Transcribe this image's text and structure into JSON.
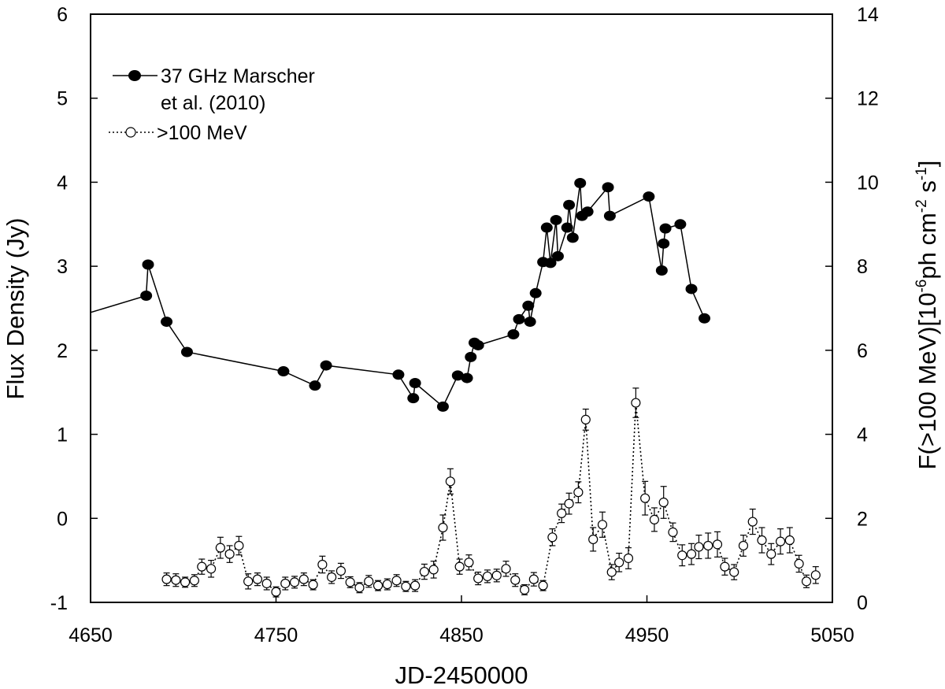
{
  "chart_data": {
    "type": "line",
    "title": "",
    "xlabel": "JD-2450000",
    "ylabel_left": "Flux Density (Jy)",
    "ylabel_right": "F(>100 MeV)[10^-6 ph cm^-2 s^-1]",
    "xlim": [
      4650,
      5050
    ],
    "ylim_left": [
      -1,
      6
    ],
    "ylim_right": [
      0,
      14
    ],
    "x_ticks": [
      "4650",
      "4750",
      "4850",
      "4950",
      "5050"
    ],
    "y_ticks_left": [
      "-1",
      "0",
      "1",
      "2",
      "3",
      "4",
      "5",
      "6"
    ],
    "y_ticks_right": [
      "0",
      "2",
      "4",
      "6",
      "8",
      "10",
      "12",
      "14"
    ],
    "legend": {
      "position": "top-left",
      "entries": [
        {
          "line1": "37 GHz Marscher",
          "line2": "et al. (2010)"
        },
        {
          "line1": ">100 MeV"
        }
      ]
    },
    "series": [
      {
        "name": "37 GHz Marscher et al. (2010)",
        "axis": "left",
        "line_start": {
          "x": 4650,
          "y": 2.45
        },
        "points": [
          {
            "x": 4680,
            "y": 2.65
          },
          {
            "x": 4681,
            "y": 3.02
          },
          {
            "x": 4691,
            "y": 2.34
          },
          {
            "x": 4702,
            "y": 1.98
          },
          {
            "x": 4754,
            "y": 1.75
          },
          {
            "x": 4771,
            "y": 1.58
          },
          {
            "x": 4777,
            "y": 1.82
          },
          {
            "x": 4816,
            "y": 1.71
          },
          {
            "x": 4824,
            "y": 1.43
          },
          {
            "x": 4825,
            "y": 1.61
          },
          {
            "x": 4840,
            "y": 1.33
          },
          {
            "x": 4848,
            "y": 1.7
          },
          {
            "x": 4853,
            "y": 1.67
          },
          {
            "x": 4855,
            "y": 1.92
          },
          {
            "x": 4857,
            "y": 2.09
          },
          {
            "x": 4859,
            "y": 2.06
          },
          {
            "x": 4878,
            "y": 2.19
          },
          {
            "x": 4881,
            "y": 2.37
          },
          {
            "x": 4886,
            "y": 2.53
          },
          {
            "x": 4887,
            "y": 2.34
          },
          {
            "x": 4890,
            "y": 2.68
          },
          {
            "x": 4894,
            "y": 3.05
          },
          {
            "x": 4896,
            "y": 3.46
          },
          {
            "x": 4898,
            "y": 3.04
          },
          {
            "x": 4901,
            "y": 3.55
          },
          {
            "x": 4902,
            "y": 3.12
          },
          {
            "x": 4907,
            "y": 3.46
          },
          {
            "x": 4908,
            "y": 3.73
          },
          {
            "x": 4910,
            "y": 3.34
          },
          {
            "x": 4914,
            "y": 3.99
          },
          {
            "x": 4915,
            "y": 3.6
          },
          {
            "x": 4918,
            "y": 3.65
          },
          {
            "x": 4929,
            "y": 3.94
          },
          {
            "x": 4930,
            "y": 3.6
          },
          {
            "x": 4951,
            "y": 3.83
          },
          {
            "x": 4958,
            "y": 2.95
          },
          {
            "x": 4959,
            "y": 3.27
          },
          {
            "x": 4960,
            "y": 3.45
          },
          {
            "x": 4968,
            "y": 3.5
          },
          {
            "x": 4974,
            "y": 2.73
          },
          {
            "x": 4981,
            "y": 2.38
          }
        ]
      },
      {
        "name": ">100 MeV",
        "axis": "right",
        "points": [
          {
            "x": 4691,
            "y": 0.55,
            "err": 0.15
          },
          {
            "x": 4696,
            "y": 0.53,
            "err": 0.15
          },
          {
            "x": 4701,
            "y": 0.48,
            "err": 0.12
          },
          {
            "x": 4706,
            "y": 0.52,
            "err": 0.14
          },
          {
            "x": 4710,
            "y": 0.85,
            "err": 0.18
          },
          {
            "x": 4715,
            "y": 0.8,
            "err": 0.2
          },
          {
            "x": 4720,
            "y": 1.3,
            "err": 0.25
          },
          {
            "x": 4725,
            "y": 1.15,
            "err": 0.2
          },
          {
            "x": 4730,
            "y": 1.35,
            "err": 0.22
          },
          {
            "x": 4735,
            "y": 0.5,
            "err": 0.18
          },
          {
            "x": 4740,
            "y": 0.55,
            "err": 0.15
          },
          {
            "x": 4745,
            "y": 0.45,
            "err": 0.15
          },
          {
            "x": 4750,
            "y": 0.25,
            "err": 0.12
          },
          {
            "x": 4755,
            "y": 0.45,
            "err": 0.15
          },
          {
            "x": 4760,
            "y": 0.48,
            "err": 0.14
          },
          {
            "x": 4765,
            "y": 0.55,
            "err": 0.15
          },
          {
            "x": 4770,
            "y": 0.42,
            "err": 0.12
          },
          {
            "x": 4775,
            "y": 0.9,
            "err": 0.2
          },
          {
            "x": 4780,
            "y": 0.6,
            "err": 0.15
          },
          {
            "x": 4785,
            "y": 0.75,
            "err": 0.18
          },
          {
            "x": 4790,
            "y": 0.48,
            "err": 0.13
          },
          {
            "x": 4795,
            "y": 0.35,
            "err": 0.12
          },
          {
            "x": 4800,
            "y": 0.5,
            "err": 0.14
          },
          {
            "x": 4805,
            "y": 0.4,
            "err": 0.12
          },
          {
            "x": 4810,
            "y": 0.43,
            "err": 0.13
          },
          {
            "x": 4815,
            "y": 0.52,
            "err": 0.14
          },
          {
            "x": 4820,
            "y": 0.38,
            "err": 0.12
          },
          {
            "x": 4825,
            "y": 0.4,
            "err": 0.14
          },
          {
            "x": 4830,
            "y": 0.73,
            "err": 0.18
          },
          {
            "x": 4835,
            "y": 0.78,
            "err": 0.2
          },
          {
            "x": 4840,
            "y": 1.78,
            "err": 0.3
          },
          {
            "x": 4844,
            "y": 2.88,
            "err": 0.3
          },
          {
            "x": 4849,
            "y": 0.85,
            "err": 0.18
          },
          {
            "x": 4854,
            "y": 0.95,
            "err": 0.18
          },
          {
            "x": 4859,
            "y": 0.57,
            "err": 0.15
          },
          {
            "x": 4864,
            "y": 0.62,
            "err": 0.15
          },
          {
            "x": 4869,
            "y": 0.64,
            "err": 0.15
          },
          {
            "x": 4874,
            "y": 0.8,
            "err": 0.18
          },
          {
            "x": 4879,
            "y": 0.53,
            "err": 0.15
          },
          {
            "x": 4884,
            "y": 0.3,
            "err": 0.12
          },
          {
            "x": 4889,
            "y": 0.55,
            "err": 0.16
          },
          {
            "x": 4894,
            "y": 0.4,
            "err": 0.12
          },
          {
            "x": 4899,
            "y": 1.55,
            "err": 0.2
          },
          {
            "x": 4904,
            "y": 2.12,
            "err": 0.22
          },
          {
            "x": 4908,
            "y": 2.35,
            "err": 0.25
          },
          {
            "x": 4913,
            "y": 2.62,
            "err": 0.25
          },
          {
            "x": 4917,
            "y": 4.35,
            "err": 0.25
          },
          {
            "x": 4921,
            "y": 1.5,
            "err": 0.28
          },
          {
            "x": 4926,
            "y": 1.85,
            "err": 0.3
          },
          {
            "x": 4931,
            "y": 0.72,
            "err": 0.18
          },
          {
            "x": 4935,
            "y": 0.95,
            "err": 0.22
          },
          {
            "x": 4940,
            "y": 1.05,
            "err": 0.25
          },
          {
            "x": 4944,
            "y": 4.75,
            "err": 0.35
          },
          {
            "x": 4949,
            "y": 2.48,
            "err": 0.4
          },
          {
            "x": 4954,
            "y": 1.97,
            "err": 0.28
          },
          {
            "x": 4959,
            "y": 2.38,
            "err": 0.38
          },
          {
            "x": 4964,
            "y": 1.67,
            "err": 0.22
          },
          {
            "x": 4969,
            "y": 1.12,
            "err": 0.25
          },
          {
            "x": 4974,
            "y": 1.15,
            "err": 0.25
          },
          {
            "x": 4978,
            "y": 1.32,
            "err": 0.28
          },
          {
            "x": 4983,
            "y": 1.35,
            "err": 0.3
          },
          {
            "x": 4988,
            "y": 1.38,
            "err": 0.3
          },
          {
            "x": 4992,
            "y": 0.85,
            "err": 0.2
          },
          {
            "x": 4997,
            "y": 0.72,
            "err": 0.18
          },
          {
            "x": 5002,
            "y": 1.35,
            "err": 0.25
          },
          {
            "x": 5007,
            "y": 1.92,
            "err": 0.3
          },
          {
            "x": 5012,
            "y": 1.48,
            "err": 0.3
          },
          {
            "x": 5017,
            "y": 1.15,
            "err": 0.25
          },
          {
            "x": 5022,
            "y": 1.45,
            "err": 0.3
          },
          {
            "x": 5027,
            "y": 1.48,
            "err": 0.3
          },
          {
            "x": 5032,
            "y": 0.92,
            "err": 0.2
          },
          {
            "x": 5036,
            "y": 0.5,
            "err": 0.15
          },
          {
            "x": 5041,
            "y": 0.65,
            "err": 0.2
          }
        ]
      }
    ]
  }
}
